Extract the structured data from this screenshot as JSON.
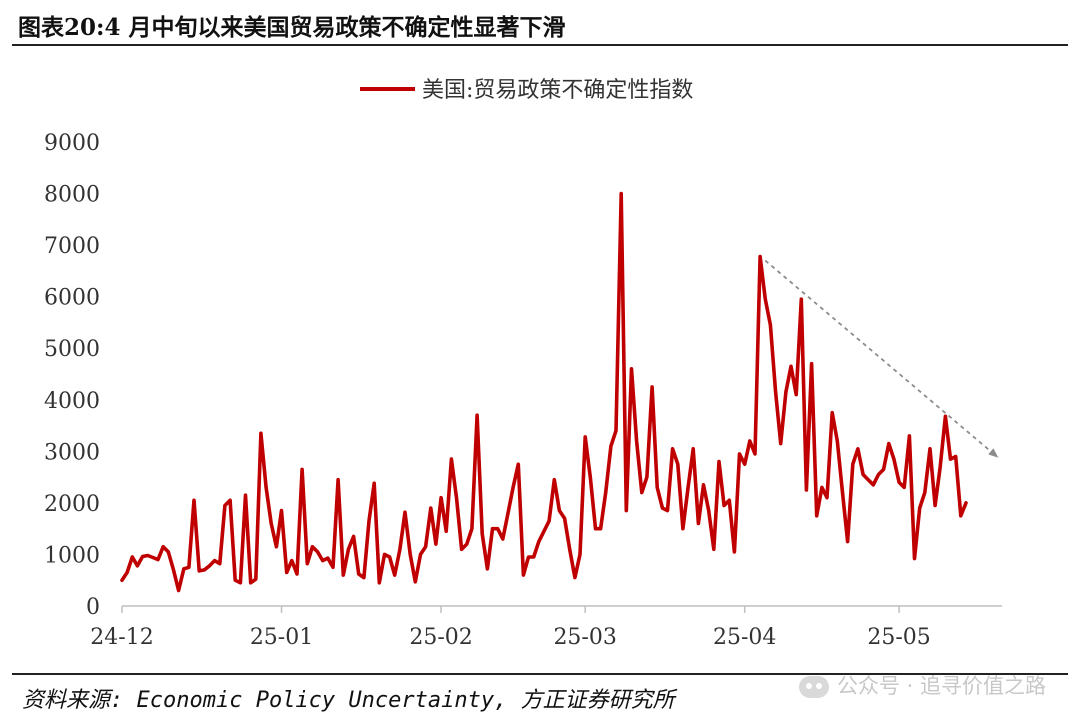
{
  "page": {
    "title": "图表20:4 月中旬以来美国贸易政策不确定性显著下滑"
  },
  "footer": {
    "source": "资料来源: Economic Policy Uncertainty, 方正证券研究所",
    "watermark": "公众号 · 追寻价值之路"
  },
  "colors": {
    "series": "#c00000",
    "arrow": "#8c8c8c",
    "axis": "#bfbfbf"
  },
  "chart_data": {
    "type": "line",
    "title": "",
    "xlabel": "",
    "ylabel": "",
    "ylim": [
      0,
      9000
    ],
    "yticks": [
      0,
      1000,
      2000,
      3000,
      4000,
      5000,
      6000,
      7000,
      8000,
      9000
    ],
    "xlim": [
      0,
      171
    ],
    "xticks": [
      {
        "label": "24-12",
        "x": 0
      },
      {
        "label": "25-01",
        "x": 31
      },
      {
        "label": "25-02",
        "x": 62
      },
      {
        "label": "25-03",
        "x": 90
      },
      {
        "label": "25-04",
        "x": 121
      },
      {
        "label": "25-05",
        "x": 151
      }
    ],
    "grid": false,
    "legend": "top-center",
    "series": [
      {
        "name": "美国:贸易政策不确定性指数",
        "values": [
          [
            0,
            500
          ],
          [
            1,
            650
          ],
          [
            2,
            950
          ],
          [
            3,
            780
          ],
          [
            4,
            960
          ],
          [
            5,
            980
          ],
          [
            6,
            940
          ],
          [
            7,
            900
          ],
          [
            8,
            1150
          ],
          [
            9,
            1050
          ],
          [
            10,
            700
          ],
          [
            11,
            300
          ],
          [
            12,
            720
          ],
          [
            13,
            750
          ],
          [
            14,
            2050
          ],
          [
            15,
            680
          ],
          [
            16,
            700
          ],
          [
            17,
            780
          ],
          [
            18,
            880
          ],
          [
            19,
            820
          ],
          [
            20,
            1950
          ],
          [
            21,
            2050
          ],
          [
            22,
            500
          ],
          [
            23,
            450
          ],
          [
            24,
            2150
          ],
          [
            25,
            450
          ],
          [
            26,
            520
          ],
          [
            27,
            3350
          ],
          [
            28,
            2300
          ],
          [
            29,
            1600
          ],
          [
            30,
            1150
          ],
          [
            31,
            1850
          ],
          [
            32,
            650
          ],
          [
            33,
            880
          ],
          [
            34,
            620
          ],
          [
            35,
            2650
          ],
          [
            36,
            820
          ],
          [
            37,
            1150
          ],
          [
            38,
            1050
          ],
          [
            39,
            880
          ],
          [
            40,
            930
          ],
          [
            41,
            750
          ],
          [
            42,
            2450
          ],
          [
            43,
            600
          ],
          [
            44,
            1100
          ],
          [
            45,
            1350
          ],
          [
            46,
            620
          ],
          [
            47,
            550
          ],
          [
            48,
            1650
          ],
          [
            49,
            2380
          ],
          [
            50,
            450
          ],
          [
            51,
            1000
          ],
          [
            52,
            950
          ],
          [
            53,
            600
          ],
          [
            54,
            1100
          ],
          [
            55,
            1820
          ],
          [
            56,
            1000
          ],
          [
            57,
            470
          ],
          [
            58,
            1000
          ],
          [
            59,
            1150
          ],
          [
            60,
            1900
          ],
          [
            61,
            1200
          ],
          [
            62,
            2100
          ],
          [
            63,
            1450
          ],
          [
            64,
            2850
          ],
          [
            65,
            2100
          ],
          [
            66,
            1100
          ],
          [
            67,
            1200
          ],
          [
            68,
            1500
          ],
          [
            69,
            3700
          ],
          [
            70,
            1400
          ],
          [
            71,
            720
          ],
          [
            72,
            1500
          ],
          [
            73,
            1500
          ],
          [
            74,
            1300
          ],
          [
            75,
            1800
          ],
          [
            76,
            2300
          ],
          [
            77,
            2750
          ],
          [
            78,
            600
          ],
          [
            79,
            950
          ],
          [
            80,
            950
          ],
          [
            81,
            1250
          ],
          [
            82,
            1450
          ],
          [
            83,
            1650
          ],
          [
            84,
            2450
          ],
          [
            85,
            1850
          ],
          [
            86,
            1700
          ],
          [
            87,
            1100
          ],
          [
            88,
            550
          ],
          [
            89,
            1000
          ],
          [
            90,
            3280
          ],
          [
            91,
            2500
          ],
          [
            92,
            1500
          ],
          [
            93,
            1500
          ],
          [
            94,
            2200
          ],
          [
            95,
            3100
          ],
          [
            96,
            3400
          ],
          [
            97,
            8000
          ],
          [
            98,
            1850
          ],
          [
            99,
            4600
          ],
          [
            100,
            3200
          ],
          [
            101,
            2200
          ],
          [
            102,
            2500
          ],
          [
            103,
            4250
          ],
          [
            104,
            2300
          ],
          [
            105,
            1900
          ],
          [
            106,
            1850
          ],
          [
            107,
            3050
          ],
          [
            108,
            2750
          ],
          [
            109,
            1500
          ],
          [
            110,
            2300
          ],
          [
            111,
            3050
          ],
          [
            112,
            1600
          ],
          [
            113,
            2350
          ],
          [
            114,
            1850
          ],
          [
            115,
            1100
          ],
          [
            116,
            2800
          ],
          [
            117,
            1950
          ],
          [
            118,
            2050
          ],
          [
            119,
            1050
          ],
          [
            120,
            2950
          ],
          [
            121,
            2750
          ],
          [
            122,
            3200
          ],
          [
            123,
            2950
          ],
          [
            124,
            6780
          ],
          [
            125,
            5950
          ],
          [
            126,
            5450
          ],
          [
            127,
            4150
          ],
          [
            128,
            3150
          ],
          [
            129,
            4150
          ],
          [
            130,
            4650
          ],
          [
            131,
            4100
          ],
          [
            132,
            5950
          ],
          [
            133,
            2250
          ],
          [
            134,
            4700
          ],
          [
            135,
            1750
          ],
          [
            136,
            2300
          ],
          [
            137,
            2100
          ],
          [
            138,
            3750
          ],
          [
            139,
            3200
          ],
          [
            140,
            2200
          ],
          [
            141,
            1250
          ],
          [
            142,
            2750
          ],
          [
            143,
            3050
          ],
          [
            144,
            2550
          ],
          [
            145,
            2450
          ],
          [
            146,
            2350
          ],
          [
            147,
            2550
          ],
          [
            148,
            2650
          ],
          [
            149,
            3150
          ],
          [
            150,
            2850
          ],
          [
            151,
            2400
          ],
          [
            152,
            2300
          ],
          [
            153,
            3300
          ],
          [
            154,
            920
          ],
          [
            155,
            1900
          ],
          [
            156,
            2200
          ],
          [
            157,
            3050
          ],
          [
            158,
            1950
          ],
          [
            159,
            2700
          ],
          [
            160,
            3680
          ],
          [
            161,
            2850
          ],
          [
            162,
            2900
          ],
          [
            163,
            1750
          ],
          [
            164,
            2000
          ]
        ]
      }
    ],
    "annotation": {
      "type": "dashed-arrow",
      "from": [
        125,
        6700
      ],
      "to": [
        170,
        2900
      ]
    }
  }
}
